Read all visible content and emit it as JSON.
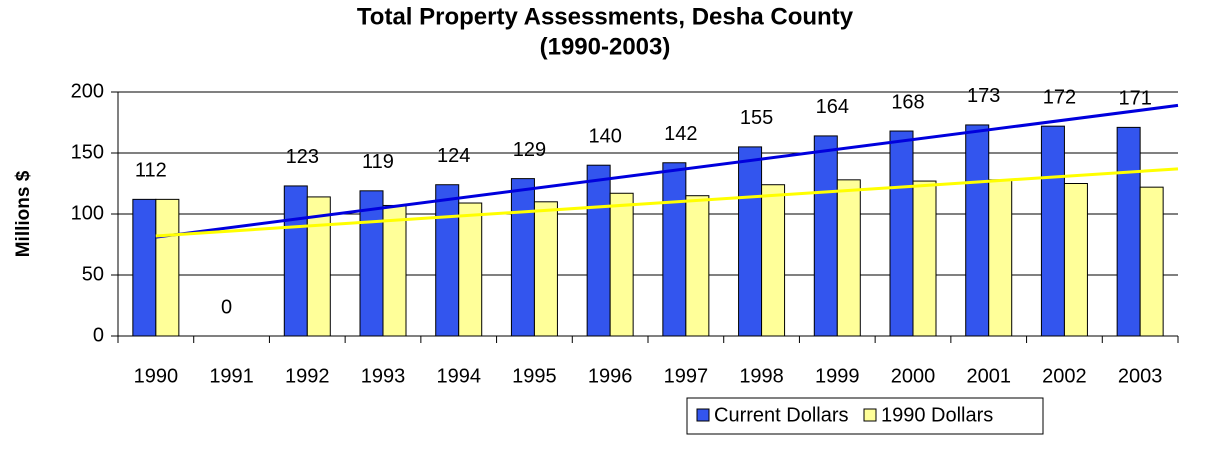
{
  "chart_data": {
    "type": "bar",
    "title": "Total Property Assessments, Desha County",
    "subtitle": "(1990-2003)",
    "y_label": "Millions $",
    "categories": [
      "1990",
      "1991",
      "1992",
      "1993",
      "1994",
      "1995",
      "1996",
      "1997",
      "1998",
      "1999",
      "2000",
      "2001",
      "2002",
      "2003"
    ],
    "series": [
      {
        "name": "Current Dollars",
        "color": "#3355ee",
        "values": [
          112,
          0,
          123,
          119,
          124,
          129,
          140,
          142,
          155,
          164,
          168,
          173,
          172,
          171
        ]
      },
      {
        "name": "1990 Dollars",
        "color": "#ffff99",
        "values": [
          112,
          0,
          114,
          107,
          109,
          110,
          117,
          115,
          124,
          128,
          127,
          128,
          125,
          122
        ]
      }
    ],
    "trendlines": [
      {
        "color": "#0000dd",
        "values": [
          81,
          189
        ]
      },
      {
        "color": "#ffff00",
        "values": [
          82,
          137
        ]
      }
    ],
    "ylim": [
      0,
      200
    ],
    "yticks": [
      0,
      50,
      100,
      150,
      200
    ],
    "grid": true,
    "legend": "bottom"
  }
}
